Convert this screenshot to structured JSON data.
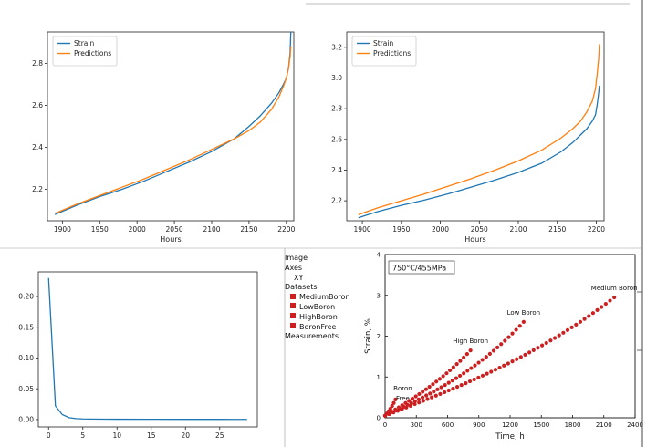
{
  "colors": {
    "strain": "#1f77b4",
    "predictions": "#ff7f0e",
    "digitized_points": "#cc1f1f"
  },
  "tree": {
    "items": [
      {
        "label": "Image",
        "level": 0
      },
      {
        "label": "Axes",
        "level": 0
      },
      {
        "label": "XY",
        "level": 1
      },
      {
        "label": "Datasets",
        "level": 0
      },
      {
        "label": "MediumBoron",
        "level": 2,
        "icon": "red-square-icon"
      },
      {
        "label": "LowBoron",
        "level": 2,
        "icon": "red-square-icon"
      },
      {
        "label": "HighBoron",
        "level": 2,
        "icon": "red-square-icon"
      },
      {
        "label": "BoronFree",
        "level": 2,
        "icon": "red-square-icon"
      },
      {
        "label": "Measurements",
        "level": 0
      }
    ]
  },
  "chart_data": [
    {
      "type": "line",
      "xlabel": "Hours",
      "ylabel": "",
      "xlim": [
        1880,
        2210
      ],
      "ylim": [
        2.05,
        2.95
      ],
      "xticks": [
        1900,
        1950,
        2000,
        2050,
        2100,
        2150,
        2200
      ],
      "yticks": [
        2.2,
        2.4,
        2.6,
        2.8
      ],
      "legend": "top-left",
      "series": [
        {
          "name": "Strain",
          "color": "#1f77b4",
          "x": [
            1890,
            1920,
            1950,
            1980,
            2010,
            2040,
            2070,
            2100,
            2130,
            2150,
            2165,
            2180,
            2190,
            2196,
            2200,
            2203,
            2205,
            2206
          ],
          "y": [
            2.08,
            2.125,
            2.165,
            2.2,
            2.24,
            2.285,
            2.33,
            2.38,
            2.44,
            2.5,
            2.55,
            2.61,
            2.66,
            2.7,
            2.73,
            2.78,
            2.85,
            2.95
          ]
        },
        {
          "name": "Predictions",
          "color": "#ff7f0e",
          "x": [
            1890,
            1920,
            1950,
            1980,
            2010,
            2040,
            2070,
            2100,
            2130,
            2150,
            2165,
            2180,
            2190,
            2196,
            2200,
            2203,
            2205,
            2206
          ],
          "y": [
            2.085,
            2.13,
            2.17,
            2.21,
            2.25,
            2.295,
            2.34,
            2.39,
            2.44,
            2.48,
            2.52,
            2.58,
            2.64,
            2.69,
            2.73,
            2.78,
            2.83,
            2.88
          ]
        }
      ]
    },
    {
      "type": "line",
      "xlabel": "Hours",
      "ylabel": "",
      "xlim": [
        1880,
        2210
      ],
      "ylim": [
        2.07,
        3.3
      ],
      "xticks": [
        1900,
        1950,
        2000,
        2050,
        2100,
        2150,
        2200
      ],
      "yticks": [
        2.2,
        2.4,
        2.6,
        2.8,
        3.0,
        3.2
      ],
      "legend": "top-left",
      "series": [
        {
          "name": "Strain",
          "color": "#1f77b4",
          "x": [
            1895,
            1920,
            1950,
            1980,
            2010,
            2040,
            2070,
            2100,
            2130,
            2155,
            2170,
            2180,
            2188,
            2195,
            2199,
            2201,
            2203,
            2204
          ],
          "y": [
            2.09,
            2.13,
            2.17,
            2.205,
            2.245,
            2.29,
            2.335,
            2.385,
            2.445,
            2.52,
            2.58,
            2.63,
            2.67,
            2.72,
            2.76,
            2.82,
            2.9,
            2.95
          ]
        },
        {
          "name": "Predictions",
          "color": "#ff7f0e",
          "x": [
            1895,
            1920,
            1950,
            1980,
            2010,
            2040,
            2070,
            2100,
            2130,
            2155,
            2170,
            2180,
            2188,
            2195,
            2199,
            2201,
            2203,
            2204
          ],
          "y": [
            2.11,
            2.155,
            2.2,
            2.245,
            2.295,
            2.345,
            2.4,
            2.46,
            2.53,
            2.61,
            2.67,
            2.72,
            2.78,
            2.85,
            2.93,
            3.02,
            3.12,
            3.22
          ]
        }
      ]
    },
    {
      "type": "line",
      "xlabel": "",
      "ylabel": "",
      "xlim": [
        -1.5,
        30.5
      ],
      "ylim": [
        -0.012,
        0.24
      ],
      "xticks": [
        0,
        5,
        10,
        15,
        20,
        25
      ],
      "yticks": [
        0.0,
        0.05,
        0.1,
        0.15,
        0.2
      ],
      "ytick_labels": [
        "0.00",
        "0.05",
        "0.10",
        "0.15",
        "0.20"
      ],
      "series": [
        {
          "color": "#1f77b4",
          "x": [
            0,
            1,
            2,
            3,
            4,
            5,
            6,
            8,
            10,
            15,
            20,
            25,
            29
          ],
          "y": [
            0.23,
            0.022,
            0.008,
            0.003,
            0.0015,
            0.001,
            0.0008,
            0.0006,
            0.0005,
            0.0004,
            0.0003,
            0.0003,
            0.0002
          ]
        }
      ]
    },
    {
      "type": "scatter",
      "title": "750°C/455MPa",
      "xlabel": "Time, h",
      "ylabel": "Strain, %",
      "xlim": [
        0,
        2400
      ],
      "ylim": [
        0,
        4
      ],
      "xticks": [
        0,
        300,
        600,
        900,
        1200,
        1500,
        1800,
        2100,
        2400
      ],
      "yticks": [
        0,
        1,
        2,
        3,
        4
      ],
      "series": [
        {
          "name": "Medium Boron",
          "label": "Medium Boron",
          "x_start": 0,
          "x_end": 2200,
          "y_start": 0.05,
          "y_end": 2.95,
          "curve": 0.25,
          "count": 55
        },
        {
          "name": "Low Boron",
          "label": "Low Boron",
          "x_start": 0,
          "x_end": 1330,
          "y_start": 0.05,
          "y_end": 2.35,
          "curve": 0.3,
          "count": 38
        },
        {
          "name": "High Boron",
          "label": "High Boron",
          "x_start": 0,
          "x_end": 820,
          "y_start": 0.05,
          "y_end": 1.65,
          "curve": 0.2,
          "count": 26
        },
        {
          "name": "Boron Free",
          "label": "Boron\nFree",
          "x_start": 0,
          "x_end": 100,
          "y_start": 0.05,
          "y_end": 0.45,
          "curve": 0.2,
          "count": 7
        }
      ]
    }
  ]
}
